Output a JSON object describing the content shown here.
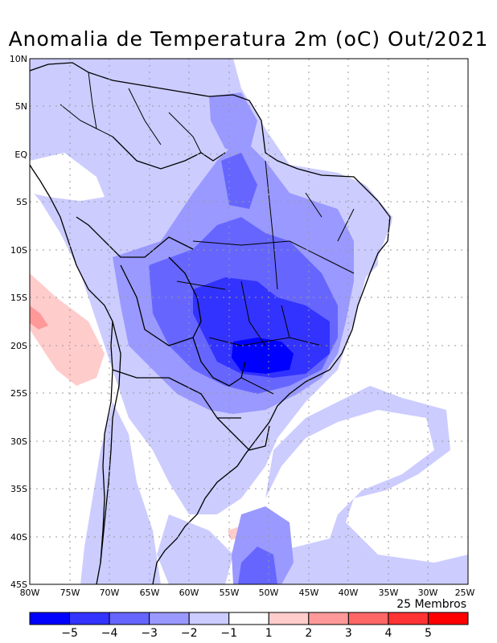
{
  "title": "Anomalia de Temperatura 2m (oC) Out/2021",
  "members_label": "25 Membros",
  "lat_ticks": [
    "10N",
    "5N",
    "EQ",
    "5S",
    "10S",
    "15S",
    "20S",
    "25S",
    "30S",
    "35S",
    "40S",
    "45S"
  ],
  "lon_ticks": [
    "80W",
    "75W",
    "70W",
    "65W",
    "60W",
    "55W",
    "50W",
    "45W",
    "40W",
    "35W",
    "30W",
    "25W"
  ],
  "colorbar": {
    "colors": [
      "#0000ff",
      "#3333ff",
      "#6666ff",
      "#9999ff",
      "#ccccff",
      "#ffffff",
      "#ffcccc",
      "#ff9999",
      "#ff6666",
      "#ff3333",
      "#ff0000"
    ],
    "labels": [
      "-5",
      "-4",
      "-3",
      "-2",
      "-1",
      "1",
      "2",
      "3",
      "4",
      "5"
    ]
  },
  "palette": {
    "c_lt": "#ccccff",
    "c_m2": "#9999ff",
    "c_m3": "#6666ff",
    "c_m4": "#3333ff",
    "c_m5": "#0000ff",
    "w_1": "#ffcccc",
    "w_2": "#ff9999"
  }
}
